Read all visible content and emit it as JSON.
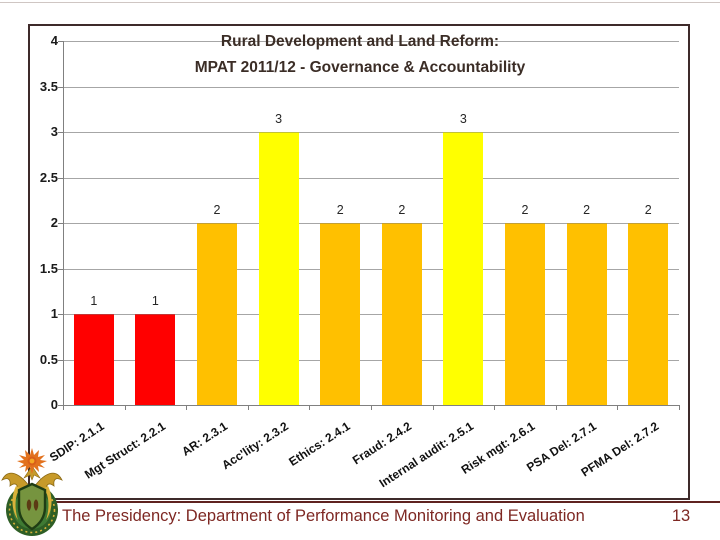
{
  "slide": {
    "background": "#FFFFFF",
    "footer": {
      "text": "The Presidency: Department of Performance Monitoring and Evaluation",
      "page_number": "13"
    },
    "logo": "south-africa-coat-of-arms"
  },
  "chart_data": {
    "type": "bar",
    "title_line1": "Rural Development and Land Reform:",
    "title_line2": "MPAT 2011/12 - Governance & Accountability",
    "categories": [
      "SDIP: 2.1.1",
      "Mgt Struct: 2.2.1",
      "AR: 2.3.1",
      "Acc'lity: 2.3.2",
      "Ethics: 2.4.1",
      "Fraud: 2.4.2",
      "Internal audit: 2.5.1",
      "Risk mgt: 2.6.1",
      "PSA Del: 2.7.1",
      "PFMA Del: 2.7.2"
    ],
    "values": [
      1,
      1,
      2,
      3,
      2,
      2,
      3,
      2,
      2,
      2
    ],
    "bar_colors": [
      "#FF0000",
      "#FF0000",
      "#FFC000",
      "#FFFF00",
      "#FFC000",
      "#FFC000",
      "#FFFF00",
      "#FFC000",
      "#FFC000",
      "#FFC000"
    ],
    "ylim": [
      0,
      4
    ],
    "ytick_values": [
      4,
      3.5,
      3,
      2.5,
      2,
      1.5,
      1,
      0.5,
      0
    ],
    "ytick_labels": [
      "4",
      "3.5",
      "3",
      "2.5",
      "2",
      "1.5",
      "1",
      "0.5",
      "0"
    ],
    "grid": true,
    "legend": false,
    "xlabel": "",
    "ylabel": ""
  },
  "colors": {
    "title_text": "#3B2D26",
    "footer_text": "#7E2823",
    "footer_rule": "#5F2320",
    "chart_border": "#3E2A2A",
    "gridline": "#A6A6A6",
    "axis_line": "#808080",
    "bar_red": "#FF0000",
    "bar_orange": "#FFC000",
    "bar_yellow": "#FFFF00"
  }
}
